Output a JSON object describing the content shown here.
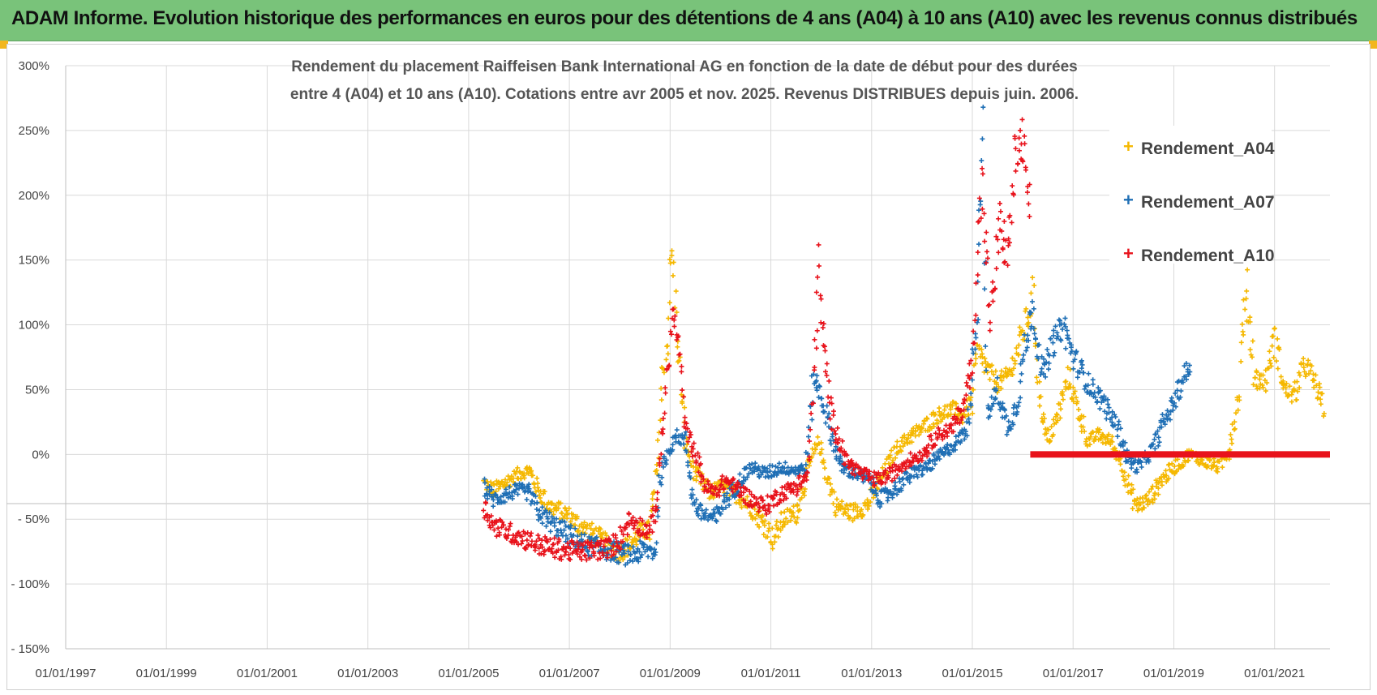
{
  "banner": {
    "title": "ADAM Informe. Evolution historique des performances en euros pour des détentions de 4 ans (A04) à 10 ans (A10) avec les revenus connus distribués"
  },
  "colors": {
    "banner": "#79c37a",
    "a04": "#f5b800",
    "a07": "#1f6fb5",
    "a10": "#e8121b"
  },
  "chart_data": {
    "type": "scatter",
    "title_lines": [
      "Rendement du placement Raiffeisen Bank International AG en fonction de la date de début pour des durées",
      "entre 4 (A04) et 10 ans (A10). Cotations entre avr 2005 et nov. 2025. Revenus DISTRIBUES depuis juin. 2006."
    ],
    "ylim": [
      -150,
      300
    ],
    "y_ticks": [
      "300%",
      "250%",
      "200%",
      "150%",
      "100%",
      "50%",
      "0%",
      "- 50%",
      "- 100%",
      "- 150%"
    ],
    "y_tick_values": [
      300,
      250,
      200,
      150,
      100,
      50,
      0,
      -50,
      -100,
      -150
    ],
    "xlim": [
      1997.0,
      2022.1
    ],
    "x_ticks": [
      "01/01/1997",
      "01/01/1999",
      "01/01/2001",
      "01/01/2003",
      "01/01/2005",
      "01/01/2007",
      "01/01/2009",
      "01/01/2011",
      "01/01/2013",
      "01/01/2015",
      "01/01/2017",
      "01/01/2019",
      "01/01/2021"
    ],
    "x_tick_values": [
      1997,
      1999,
      2001,
      2003,
      2005,
      2007,
      2009,
      2011,
      2013,
      2015,
      2017,
      2019,
      2021
    ],
    "legend_position": "top-right",
    "series": [
      {
        "name": "Rendement_A04",
        "color": "#f5b800",
        "points": [
          [
            2005.3,
            -22
          ],
          [
            2005.5,
            -28
          ],
          [
            2005.8,
            -20
          ],
          [
            2006.0,
            -15
          ],
          [
            2006.2,
            -12
          ],
          [
            2006.35,
            -25
          ],
          [
            2006.6,
            -40
          ],
          [
            2006.9,
            -45
          ],
          [
            2007.2,
            -55
          ],
          [
            2007.5,
            -62
          ],
          [
            2007.8,
            -72
          ],
          [
            2008.0,
            -75
          ],
          [
            2008.2,
            -70
          ],
          [
            2008.4,
            -60
          ],
          [
            2008.6,
            -58
          ],
          [
            2008.75,
            -10
          ],
          [
            2008.85,
            60
          ],
          [
            2008.95,
            90
          ],
          [
            2009.0,
            140
          ],
          [
            2009.05,
            155
          ],
          [
            2009.15,
            85
          ],
          [
            2009.3,
            10
          ],
          [
            2009.5,
            -15
          ],
          [
            2009.8,
            -30
          ],
          [
            2010.0,
            -25
          ],
          [
            2010.3,
            -30
          ],
          [
            2010.6,
            -40
          ],
          [
            2010.9,
            -55
          ],
          [
            2011.05,
            -65
          ],
          [
            2011.25,
            -50
          ],
          [
            2011.5,
            -45
          ],
          [
            2011.75,
            -10
          ],
          [
            2011.95,
            10
          ],
          [
            2012.1,
            -15
          ],
          [
            2012.3,
            -40
          ],
          [
            2012.6,
            -45
          ],
          [
            2012.9,
            -40
          ],
          [
            2013.1,
            -25
          ],
          [
            2013.3,
            -10
          ],
          [
            2013.5,
            5
          ],
          [
            2013.8,
            15
          ],
          [
            2014.0,
            20
          ],
          [
            2014.3,
            30
          ],
          [
            2014.6,
            35
          ],
          [
            2014.8,
            30
          ],
          [
            2015.0,
            40
          ],
          [
            2015.1,
            80
          ],
          [
            2015.3,
            65
          ],
          [
            2015.5,
            55
          ],
          [
            2015.7,
            60
          ],
          [
            2015.9,
            80
          ],
          [
            2016.1,
            105
          ],
          [
            2016.2,
            120
          ],
          [
            2016.35,
            40
          ],
          [
            2016.5,
            10
          ],
          [
            2016.7,
            30
          ],
          [
            2016.9,
            60
          ],
          [
            2017.1,
            35
          ],
          [
            2017.3,
            10
          ],
          [
            2017.5,
            15
          ],
          [
            2017.75,
            10
          ],
          [
            2017.95,
            -5
          ],
          [
            2018.1,
            -25
          ],
          [
            2018.25,
            -40
          ],
          [
            2018.5,
            -35
          ],
          [
            2018.75,
            -20
          ],
          [
            2019.0,
            -10
          ],
          [
            2019.3,
            0
          ],
          [
            2019.6,
            -5
          ],
          [
            2019.9,
            -10
          ],
          [
            2020.1,
            5
          ],
          [
            2020.3,
            50
          ],
          [
            2020.35,
            95
          ],
          [
            2020.45,
            125
          ],
          [
            2020.6,
            60
          ],
          [
            2020.8,
            55
          ],
          [
            2021.0,
            90
          ],
          [
            2021.2,
            50
          ],
          [
            2021.4,
            45
          ],
          [
            2021.6,
            70
          ],
          [
            2021.8,
            55
          ],
          [
            2022.0,
            35
          ]
        ]
      },
      {
        "name": "Rendement_A07",
        "color": "#1f6fb5",
        "points": [
          [
            2005.3,
            -25
          ],
          [
            2005.5,
            -35
          ],
          [
            2005.8,
            -30
          ],
          [
            2006.0,
            -28
          ],
          [
            2006.2,
            -30
          ],
          [
            2006.4,
            -45
          ],
          [
            2006.7,
            -55
          ],
          [
            2007.0,
            -62
          ],
          [
            2007.3,
            -70
          ],
          [
            2007.6,
            -72
          ],
          [
            2007.9,
            -75
          ],
          [
            2008.2,
            -78
          ],
          [
            2008.5,
            -74
          ],
          [
            2008.7,
            -75
          ],
          [
            2008.8,
            -20
          ],
          [
            2008.95,
            0
          ],
          [
            2009.1,
            15
          ],
          [
            2009.3,
            10
          ],
          [
            2009.45,
            -35
          ],
          [
            2009.6,
            -45
          ],
          [
            2009.9,
            -50
          ],
          [
            2010.1,
            -35
          ],
          [
            2010.4,
            -20
          ],
          [
            2010.6,
            -10
          ],
          [
            2010.9,
            -15
          ],
          [
            2011.2,
            -10
          ],
          [
            2011.5,
            -12
          ],
          [
            2011.7,
            -10
          ],
          [
            2011.85,
            60
          ],
          [
            2012.0,
            45
          ],
          [
            2012.2,
            15
          ],
          [
            2012.4,
            -10
          ],
          [
            2012.7,
            -15
          ],
          [
            2012.95,
            -20
          ],
          [
            2013.2,
            -35
          ],
          [
            2013.5,
            -25
          ],
          [
            2013.8,
            -15
          ],
          [
            2014.1,
            -10
          ],
          [
            2014.4,
            0
          ],
          [
            2014.7,
            10
          ],
          [
            2014.9,
            20
          ],
          [
            2015.0,
            60
          ],
          [
            2015.1,
            120
          ],
          [
            2015.15,
            200
          ],
          [
            2015.2,
            240
          ],
          [
            2015.3,
            30
          ],
          [
            2015.5,
            50
          ],
          [
            2015.7,
            20
          ],
          [
            2015.9,
            40
          ],
          [
            2016.0,
            70
          ],
          [
            2016.2,
            115
          ],
          [
            2016.4,
            60
          ],
          [
            2016.6,
            85
          ],
          [
            2016.8,
            100
          ],
          [
            2017.0,
            75
          ],
          [
            2017.3,
            55
          ],
          [
            2017.6,
            40
          ],
          [
            2017.9,
            20
          ],
          [
            2018.1,
            -5
          ],
          [
            2018.3,
            -10
          ],
          [
            2018.6,
            5
          ],
          [
            2018.8,
            25
          ],
          [
            2019.0,
            40
          ],
          [
            2019.2,
            60
          ],
          [
            2019.35,
            70
          ]
        ]
      },
      {
        "name": "Rendement_A10",
        "color": "#e8121b",
        "points": [
          [
            2005.3,
            -40
          ],
          [
            2005.5,
            -55
          ],
          [
            2005.8,
            -60
          ],
          [
            2006.1,
            -65
          ],
          [
            2006.4,
            -70
          ],
          [
            2006.8,
            -73
          ],
          [
            2007.1,
            -75
          ],
          [
            2007.5,
            -74
          ],
          [
            2007.8,
            -72
          ],
          [
            2008.0,
            -65
          ],
          [
            2008.2,
            -50
          ],
          [
            2008.4,
            -55
          ],
          [
            2008.6,
            -60
          ],
          [
            2008.75,
            -35
          ],
          [
            2008.85,
            20
          ],
          [
            2008.95,
            60
          ],
          [
            2009.05,
            110
          ],
          [
            2009.15,
            90
          ],
          [
            2009.3,
            20
          ],
          [
            2009.5,
            0
          ],
          [
            2009.7,
            -25
          ],
          [
            2009.9,
            -30
          ],
          [
            2010.1,
            -20
          ],
          [
            2010.3,
            -25
          ],
          [
            2010.6,
            -35
          ],
          [
            2010.9,
            -40
          ],
          [
            2011.2,
            -30
          ],
          [
            2011.5,
            -25
          ],
          [
            2011.75,
            -15
          ],
          [
            2011.85,
            60
          ],
          [
            2011.95,
            145
          ],
          [
            2012.05,
            80
          ],
          [
            2012.2,
            30
          ],
          [
            2012.5,
            -5
          ],
          [
            2012.8,
            -15
          ],
          [
            2013.1,
            -20
          ],
          [
            2013.4,
            -15
          ],
          [
            2013.7,
            -5
          ],
          [
            2014.0,
            0
          ],
          [
            2014.3,
            15
          ],
          [
            2014.6,
            20
          ],
          [
            2014.8,
            35
          ],
          [
            2015.0,
            70
          ],
          [
            2015.1,
            150
          ],
          [
            2015.2,
            210
          ],
          [
            2015.35,
            100
          ],
          [
            2015.55,
            180
          ],
          [
            2015.7,
            150
          ],
          [
            2015.85,
            230
          ],
          [
            2016.0,
            240
          ],
          [
            2016.1,
            200
          ],
          [
            2016.15,
            190
          ]
        ]
      }
    ],
    "constant_segment": {
      "series": "Rendement_A10",
      "x_from": 2016.15,
      "x_to": 2022.1,
      "y": 0
    }
  },
  "legend": {
    "items": [
      {
        "marker": "+",
        "label": "Rendement_A04",
        "color": "#f5b800"
      },
      {
        "marker": "+",
        "label": "Rendement_A07",
        "color": "#1f6fb5"
      },
      {
        "marker": "+",
        "label": "Rendement_A10",
        "color": "#e8121b"
      }
    ]
  }
}
